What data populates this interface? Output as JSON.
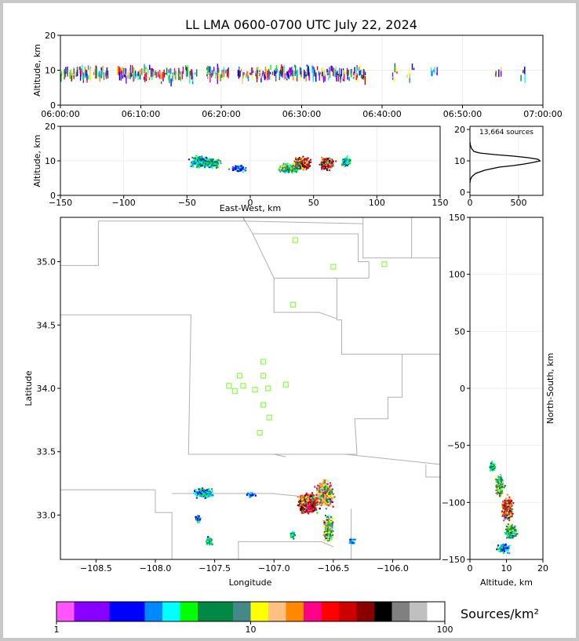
{
  "title": "LL LMA 0600-0700 UTC July 22, 2024",
  "colors": {
    "colorbar": [
      "#ff55ff",
      "#8800ff",
      "#8800ff",
      "#0000ff",
      "#0000ff",
      "#0088ff",
      "#00ffff",
      "#00ff00",
      "#008844",
      "#008844",
      "#448888",
      "#ffff00",
      "#ffc080",
      "#ff8800",
      "#ff0088",
      "#ff0000",
      "#cc0000",
      "#880000",
      "#000000",
      "#808080",
      "#c0c0c0",
      "#ffffff"
    ],
    "map_lines": "#b0b0b0",
    "station": "#88ff44"
  },
  "chart_data": [
    {
      "type": "scatter",
      "name": "time-height",
      "title": "LL LMA 0600-0700 UTC July 22, 2024",
      "ylabel": "Altitude, km",
      "xlim": [
        "06:00:00",
        "07:00:00"
      ],
      "ylim": [
        0,
        20
      ],
      "x_ticks": [
        "06:00:00",
        "06:10:00",
        "06:20:00",
        "06:30:00",
        "06:40:00",
        "06:50:00",
        "07:00:00"
      ],
      "y_ticks": [
        0,
        10,
        20
      ],
      "activity_minutes": [
        0,
        1,
        2,
        3,
        4,
        5,
        7,
        8,
        9,
        10,
        11,
        12,
        13,
        14,
        15,
        16,
        18,
        19,
        20,
        22,
        23,
        24,
        25,
        26,
        27,
        28,
        29,
        30,
        31,
        32,
        33,
        34,
        35,
        36,
        37,
        41,
        43,
        46,
        54,
        57
      ]
    },
    {
      "type": "heatmap",
      "name": "east-west-altitude",
      "xlabel": "East-West, km",
      "ylabel": "Altitude, km",
      "xlim": [
        -150,
        150
      ],
      "ylim": [
        0,
        20
      ],
      "x_ticks": [
        -150,
        -100,
        -50,
        0,
        50,
        100,
        150
      ],
      "y_ticks": [
        0,
        10,
        20
      ]
    },
    {
      "type": "line",
      "name": "altitude-histogram",
      "annotation": "13,664 sources",
      "xlim": [
        0,
        750
      ],
      "ylim": [
        0,
        20
      ],
      "x_ticks": [
        0,
        500
      ],
      "y_ticks": [
        0,
        10,
        20
      ],
      "x": [
        0,
        5,
        20,
        60,
        150,
        300,
        450,
        560,
        650,
        720,
        700,
        600,
        450,
        250,
        100,
        40,
        15,
        5,
        0
      ],
      "y": [
        3,
        4,
        5,
        6,
        7,
        8,
        8.5,
        9,
        9.5,
        10,
        10.5,
        11,
        11.5,
        12,
        12.5,
        13,
        14,
        15,
        16
      ]
    },
    {
      "type": "heatmap",
      "name": "plan-view",
      "xlabel": "Longitude",
      "ylabel": "Latitude",
      "xlim": [
        -108.8,
        -105.6
      ],
      "ylim": [
        32.65,
        35.35
      ],
      "x_ticks": [
        -108.5,
        -108.0,
        -107.5,
        -107.0,
        -106.5,
        -106.0
      ],
      "y_ticks": [
        33.0,
        33.5,
        34.0,
        34.5,
        35.0
      ],
      "stations": [
        [
          -106.82,
          35.17
        ],
        [
          -106.5,
          34.96
        ],
        [
          -106.07,
          34.98
        ],
        [
          -106.84,
          34.66
        ],
        [
          -107.09,
          34.21
        ],
        [
          -107.29,
          34.1
        ],
        [
          -107.09,
          34.1
        ],
        [
          -107.38,
          34.02
        ],
        [
          -107.26,
          34.02
        ],
        [
          -106.9,
          34.03
        ],
        [
          -107.33,
          33.98
        ],
        [
          -107.16,
          33.99
        ],
        [
          -107.05,
          34.0
        ],
        [
          -107.09,
          33.87
        ],
        [
          -107.04,
          33.77
        ],
        [
          -107.12,
          33.65
        ]
      ]
    },
    {
      "type": "heatmap",
      "name": "altitude-north-south",
      "xlabel": "Altitude, km",
      "ylabel": "North-South, km",
      "xlim": [
        0,
        20
      ],
      "ylim": [
        -150,
        150
      ],
      "x_ticks": [
        0,
        10,
        20
      ],
      "y_ticks": [
        -150,
        -100,
        -50,
        0,
        50,
        100,
        150
      ]
    }
  ],
  "colorbar": {
    "label": "Sources/km²",
    "ticks": [
      1,
      10,
      100
    ]
  }
}
